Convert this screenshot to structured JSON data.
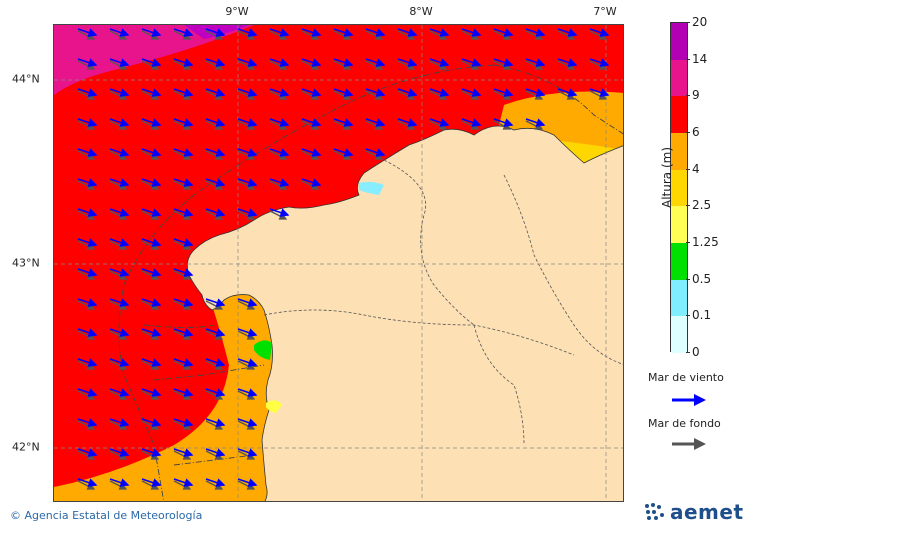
{
  "map": {
    "lon_labels": [
      "9°W",
      "8°W",
      "7°W"
    ],
    "lat_labels": [
      "44°N",
      "43°N",
      "42°N"
    ],
    "ocean_colors": {
      "mid_zone": "#ff0000",
      "high_zone": "#e8148c",
      "top_zone": "#c000c0",
      "lower_zone": "#ffaa00",
      "land": "#fde0b4",
      "light_zone": "#ffd700",
      "pale_zone": "#ffff44",
      "green_zone": "#00e000",
      "cyan_zone": "#88eeff"
    },
    "arrows": {
      "wind_color": "#0000ff",
      "swell_color": "#555555"
    }
  },
  "colorbar": {
    "title": "Altura (m)",
    "ticks": [
      "20",
      "14",
      "9",
      "6",
      "4",
      "2.5",
      "1.25",
      "0.5",
      "0.1",
      "0"
    ],
    "colors": [
      "#b400b4",
      "#e8148c",
      "#ff0000",
      "#ffaa00",
      "#ffd700",
      "#ffff55",
      "#00e000",
      "#7fefff",
      "#ddffff"
    ]
  },
  "legend": {
    "wind_label": "Mar de viento",
    "swell_label": "Mar de fondo",
    "wind_color": "#0000ff",
    "swell_color": "#555555"
  },
  "footer": {
    "credit": "© Agencia Estatal de Meteorología",
    "logo_text": "aemet"
  }
}
